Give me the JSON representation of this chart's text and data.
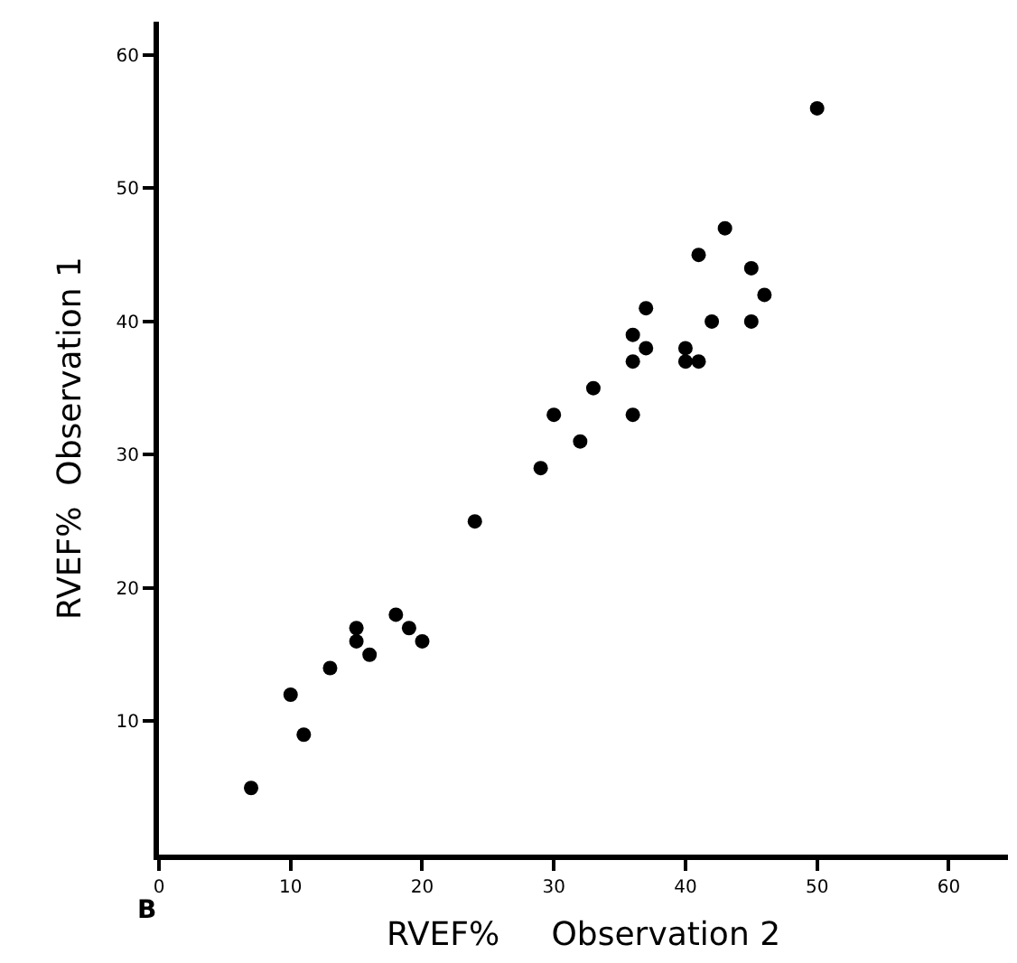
{
  "chart_data": {
    "type": "scatter",
    "xlabel": "RVEF%     Observation 2",
    "ylabel": "RVEF%  Observation 1",
    "annotations": [
      "B"
    ],
    "x": [
      7,
      10,
      11,
      13,
      15,
      15,
      16,
      18,
      19,
      20,
      24,
      29,
      30,
      32,
      33,
      36,
      36,
      36,
      37,
      37,
      40,
      40,
      41,
      41,
      42,
      43,
      45,
      45,
      46,
      50
    ],
    "series": [
      {
        "color": "#000000",
        "values": [
          5,
          12,
          9,
          14,
          17,
          16,
          15,
          18,
          17,
          16,
          25,
          29,
          33,
          31,
          35,
          39,
          37,
          33,
          41,
          38,
          38,
          37,
          37,
          45,
          40,
          47,
          44,
          40,
          42,
          56
        ]
      }
    ],
    "xlim": [
      0,
      64.5
    ],
    "ylim": [
      0,
      62.5
    ],
    "xticks": [
      0,
      10,
      20,
      30,
      40,
      50,
      60
    ],
    "yticks": [
      10,
      20,
      30,
      40,
      50,
      60
    ],
    "marker": "circle",
    "grid": false,
    "legend": false
  }
}
